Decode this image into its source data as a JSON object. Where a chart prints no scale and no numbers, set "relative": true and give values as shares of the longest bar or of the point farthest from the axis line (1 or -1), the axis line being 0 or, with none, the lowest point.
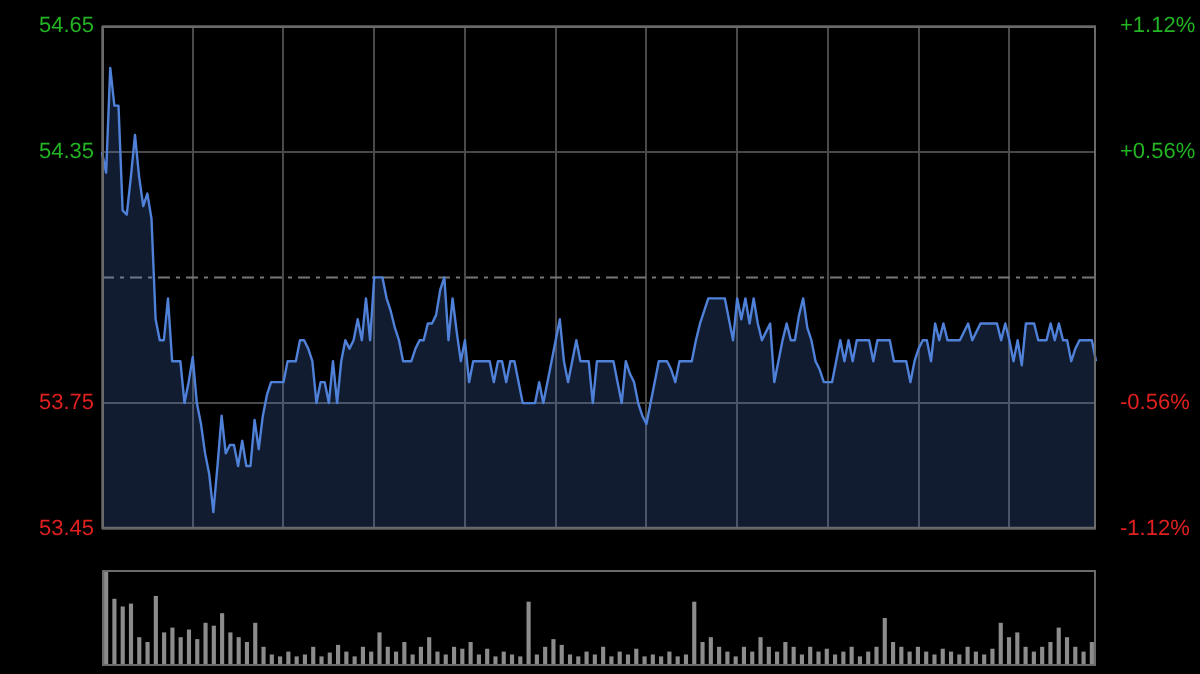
{
  "chart_data": [
    {
      "type": "area",
      "categories": [
        null,
        null,
        null,
        null,
        null,
        null,
        null,
        null,
        null,
        null,
        null,
        null,
        null,
        null,
        null,
        null,
        null,
        null,
        null,
        null,
        null,
        null,
        null,
        null,
        null,
        null,
        null,
        null,
        null,
        null,
        null,
        null,
        null,
        null,
        null,
        null,
        null,
        null,
        null,
        null,
        null,
        null,
        null,
        null,
        null,
        null,
        null,
        null,
        null,
        null,
        null,
        null,
        null,
        null,
        null,
        null,
        null,
        null,
        null,
        null,
        null,
        null,
        null,
        null,
        null,
        null,
        null,
        null,
        null,
        null,
        null,
        null,
        null,
        null,
        null,
        null,
        null,
        null,
        null,
        null,
        null,
        null,
        null,
        null,
        null,
        null,
        null,
        null,
        null,
        null,
        null,
        null,
        null,
        null,
        null,
        null,
        null,
        null,
        null,
        null,
        null,
        null,
        null,
        null,
        null,
        null,
        null,
        null,
        null,
        null,
        null,
        null,
        null,
        null,
        null,
        null,
        null,
        null,
        null,
        null,
        null,
        null,
        null,
        null,
        null,
        null,
        null,
        null,
        null,
        null,
        null,
        null,
        null,
        null,
        null,
        null,
        null,
        null,
        null,
        null,
        null,
        null,
        null,
        null,
        null,
        null,
        null,
        null,
        null,
        null,
        null,
        null,
        null,
        null,
        null,
        null,
        null,
        null,
        null,
        null,
        null,
        null,
        null,
        null,
        null,
        null,
        null,
        null,
        null,
        null,
        null,
        null,
        null,
        null,
        null,
        null,
        null,
        null,
        null,
        null,
        null,
        null,
        null,
        null,
        null,
        null,
        null,
        null,
        null,
        null,
        null,
        null,
        null,
        null,
        null,
        null,
        null,
        null,
        null,
        null,
        null,
        null,
        null,
        null,
        null,
        null,
        null,
        null,
        null,
        null,
        null,
        null,
        null,
        null,
        null,
        null,
        null,
        null,
        null,
        null,
        null,
        null,
        null,
        null,
        null,
        null,
        null,
        null,
        null,
        null,
        null,
        null,
        null,
        null,
        null,
        null,
        null,
        null,
        null,
        null,
        null,
        null
      ],
      "series": [
        {
          "color": "#4f81d9",
          "values": [
            54.35,
            54.3,
            54.55,
            54.46,
            54.46,
            54.21,
            54.2,
            54.29,
            54.39,
            54.29,
            54.22,
            54.25,
            54.19,
            53.95,
            53.9,
            53.9,
            54.0,
            53.85,
            53.85,
            53.85,
            53.75,
            53.8,
            53.86,
            53.75,
            53.7,
            53.63,
            53.58,
            53.49,
            53.6,
            53.72,
            53.63,
            53.65,
            53.65,
            53.6,
            53.66,
            53.6,
            53.6,
            53.71,
            53.64,
            53.72,
            53.77,
            53.8,
            53.8,
            53.8,
            53.8,
            53.85,
            53.85,
            53.85,
            53.9,
            53.9,
            53.88,
            53.85,
            53.75,
            53.8,
            53.8,
            53.75,
            53.85,
            53.75,
            53.85,
            53.9,
            53.88,
            53.9,
            53.95,
            53.9,
            54.0,
            53.9,
            54.05,
            54.05,
            54.05,
            54.0,
            53.97,
            53.93,
            53.9,
            53.85,
            53.85,
            53.85,
            53.88,
            53.9,
            53.9,
            53.94,
            53.94,
            53.96,
            54.02,
            54.05,
            53.9,
            54.0,
            53.92,
            53.85,
            53.9,
            53.8,
            53.85,
            53.85,
            53.85,
            53.85,
            53.85,
            53.8,
            53.85,
            53.85,
            53.8,
            53.85,
            53.85,
            53.8,
            53.75,
            53.75,
            53.75,
            53.75,
            53.8,
            53.75,
            53.8,
            53.85,
            53.9,
            53.95,
            53.85,
            53.8,
            53.85,
            53.9,
            53.85,
            53.85,
            53.85,
            53.75,
            53.85,
            53.85,
            53.85,
            53.85,
            53.85,
            53.8,
            53.75,
            53.85,
            53.82,
            53.8,
            53.75,
            53.72,
            53.7,
            53.75,
            53.8,
            53.85,
            53.85,
            53.85,
            53.83,
            53.8,
            53.85,
            53.85,
            53.85,
            53.85,
            53.9,
            53.94,
            53.97,
            54.0,
            54.0,
            54.0,
            54.0,
            54.0,
            53.95,
            53.9,
            54.0,
            53.95,
            54.0,
            53.94,
            54.0,
            53.94,
            53.9,
            53.92,
            53.94,
            53.8,
            53.85,
            53.9,
            53.94,
            53.9,
            53.9,
            53.96,
            54.0,
            53.93,
            53.9,
            53.85,
            53.83,
            53.8,
            53.8,
            53.8,
            53.85,
            53.9,
            53.85,
            53.9,
            53.85,
            53.9,
            53.9,
            53.9,
            53.9,
            53.85,
            53.9,
            53.9,
            53.9,
            53.9,
            53.85,
            53.85,
            53.85,
            53.85,
            53.8,
            53.85,
            53.88,
            53.9,
            53.9,
            53.85,
            53.94,
            53.9,
            53.94,
            53.9,
            53.9,
            53.9,
            53.9,
            53.92,
            53.94,
            53.9,
            53.92,
            53.94,
            53.94,
            53.94,
            53.94,
            53.94,
            53.9,
            53.94,
            53.9,
            53.85,
            53.9,
            53.84,
            53.94,
            53.94,
            53.94,
            53.9,
            53.9,
            53.9,
            53.94,
            53.9,
            53.94,
            53.9,
            53.9,
            53.85,
            53.88,
            53.9,
            53.9,
            53.9,
            53.9,
            53.85
          ]
        }
      ],
      "ylim": [
        53.45,
        54.65
      ],
      "yticks": [
        53.45,
        53.75,
        54.35,
        54.65
      ],
      "y2lim": [
        -1.12,
        1.12
      ],
      "y2ticks": [
        {
          "value": -1.12,
          "label": "-1.12%"
        },
        {
          "value": -0.56,
          "label": "-0.56%"
        },
        {
          "value": 0.56,
          "label": "+0.56%"
        },
        {
          "value": 1.12,
          "label": "+1.12%"
        }
      ],
      "ref_lines": [
        {
          "axis": "y",
          "value": 54.05,
          "color": "#777777",
          "line_style": "dashdot"
        }
      ],
      "grid": true,
      "legend": false,
      "tick_labels": "y"
    },
    {
      "type": "bar",
      "relative": true,
      "color": "#8c8c8c",
      "categories": [
        null,
        null,
        null,
        null,
        null,
        null,
        null,
        null,
        null,
        null,
        null,
        null,
        null,
        null,
        null,
        null,
        null,
        null,
        null,
        null,
        null,
        null,
        null,
        null,
        null,
        null,
        null,
        null,
        null,
        null,
        null,
        null,
        null,
        null,
        null,
        null,
        null,
        null,
        null,
        null,
        null,
        null,
        null,
        null,
        null,
        null,
        null,
        null,
        null,
        null,
        null,
        null,
        null,
        null,
        null,
        null,
        null,
        null,
        null,
        null,
        null,
        null,
        null,
        null,
        null,
        null,
        null,
        null,
        null,
        null,
        null,
        null,
        null,
        null,
        null,
        null,
        null,
        null,
        null,
        null,
        null,
        null,
        null,
        null,
        null,
        null,
        null,
        null,
        null,
        null,
        null,
        null,
        null,
        null,
        null,
        null,
        null,
        null,
        null,
        null,
        null,
        null,
        null,
        null,
        null,
        null,
        null,
        null,
        null,
        null,
        null,
        null,
        null,
        null,
        null,
        null,
        null,
        null,
        null,
        null
      ],
      "values": [
        1.0,
        0.7,
        0.62,
        0.65,
        0.3,
        0.25,
        0.73,
        0.35,
        0.4,
        0.3,
        0.38,
        0.28,
        0.45,
        0.42,
        0.55,
        0.35,
        0.3,
        0.25,
        0.45,
        0.2,
        0.12,
        0.1,
        0.15,
        0.1,
        0.12,
        0.2,
        0.1,
        0.14,
        0.22,
        0.15,
        0.1,
        0.2,
        0.15,
        0.35,
        0.2,
        0.15,
        0.25,
        0.12,
        0.2,
        0.3,
        0.15,
        0.12,
        0.2,
        0.18,
        0.25,
        0.12,
        0.18,
        0.1,
        0.15,
        0.12,
        0.1,
        0.67,
        0.12,
        0.2,
        0.28,
        0.22,
        0.12,
        0.1,
        0.15,
        0.12,
        0.2,
        0.1,
        0.15,
        0.12,
        0.18,
        0.1,
        0.12,
        0.1,
        0.15,
        0.1,
        0.12,
        0.67,
        0.25,
        0.3,
        0.2,
        0.15,
        0.1,
        0.2,
        0.15,
        0.3,
        0.2,
        0.15,
        0.25,
        0.2,
        0.12,
        0.2,
        0.15,
        0.18,
        0.12,
        0.15,
        0.2,
        0.1,
        0.15,
        0.2,
        0.5,
        0.25,
        0.2,
        0.15,
        0.2,
        0.15,
        0.12,
        0.18,
        0.15,
        0.12,
        0.2,
        0.15,
        0.12,
        0.18,
        0.45,
        0.3,
        0.35,
        0.2,
        0.15,
        0.2,
        0.25,
        0.4,
        0.3,
        0.2,
        0.15,
        0.25
      ],
      "legend": false,
      "tick_labels": false
    }
  ]
}
